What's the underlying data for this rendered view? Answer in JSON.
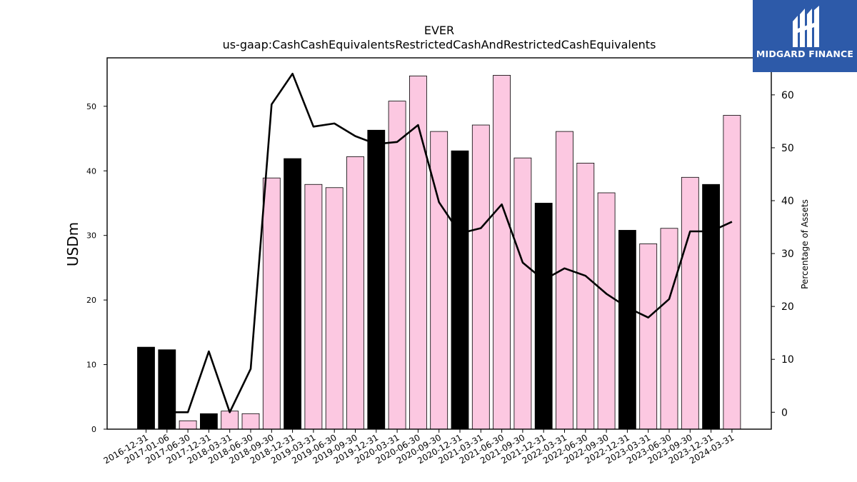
{
  "chart_data": {
    "type": "bar",
    "title": "EVER",
    "subtitle": "us-gaap:CashCashEquivalentsRestrictedCashAndRestrictedCashEquivalents",
    "ylabel": "USDm",
    "y2label": "Percentage of Assets",
    "ylim": [
      0,
      57.5
    ],
    "y2lim": [
      -3.2,
      67.0
    ],
    "yticks": [
      0,
      10,
      20,
      30,
      40,
      50
    ],
    "y2ticks": [
      0,
      10,
      20,
      30,
      40,
      50,
      60
    ],
    "categories": [
      "2016-12-31",
      "2017-01-06",
      "2017-06-30",
      "2017-12-31",
      "2018-03-31",
      "2018-06-30",
      "2018-09-30",
      "2018-12-31",
      "2019-03-31",
      "2019-06-30",
      "2019-09-30",
      "2019-12-31",
      "2020-03-31",
      "2020-06-30",
      "2020-09-30",
      "2020-12-31",
      "2021-03-31",
      "2021-06-30",
      "2021-09-30",
      "2021-12-31",
      "2022-03-31",
      "2022-06-30",
      "2022-09-30",
      "2022-12-31",
      "2023-03-31",
      "2023-06-30",
      "2023-09-30",
      "2023-12-31",
      "2024-03-31"
    ],
    "series": [
      {
        "kind": "bar",
        "values": [
          12.7,
          12.3,
          1.3,
          2.4,
          2.8,
          2.4,
          38.9,
          41.9,
          37.9,
          37.4,
          42.2,
          46.3,
          50.8,
          54.7,
          46.1,
          43.1,
          47.1,
          54.8,
          42.0,
          35.0,
          46.1,
          41.2,
          36.6,
          30.8,
          28.7,
          31.1,
          39.0,
          37.9,
          48.6
        ],
        "colors": [
          "#000000",
          "#000000",
          "#fcc8e1",
          "#000000",
          "#fcc8e1",
          "#fcc8e1",
          "#fcc8e1",
          "#000000",
          "#fcc8e1",
          "#fcc8e1",
          "#fcc8e1",
          "#000000",
          "#fcc8e1",
          "#fcc8e1",
          "#fcc8e1",
          "#000000",
          "#fcc8e1",
          "#fcc8e1",
          "#fcc8e1",
          "#000000",
          "#fcc8e1",
          "#fcc8e1",
          "#fcc8e1",
          "#000000",
          "#fcc8e1",
          "#fcc8e1",
          "#fcc8e1",
          "#000000",
          "#fcc8e1"
        ]
      },
      {
        "kind": "line",
        "axis": "right",
        "color": "#000000",
        "values": [
          null,
          0.0,
          0.0,
          11.5,
          0.0,
          8.2,
          58.2,
          64.0,
          54.0,
          54.6,
          52.2,
          50.7,
          51.1,
          54.3,
          39.7,
          33.8,
          34.8,
          39.3,
          28.3,
          25.0,
          27.2,
          25.8,
          22.4,
          19.8,
          17.9,
          21.4,
          34.2,
          34.2,
          36.0
        ]
      }
    ]
  },
  "logo": {
    "brand": "MIDGARD FINANCE",
    "icon": "midgard-logo-icon"
  }
}
